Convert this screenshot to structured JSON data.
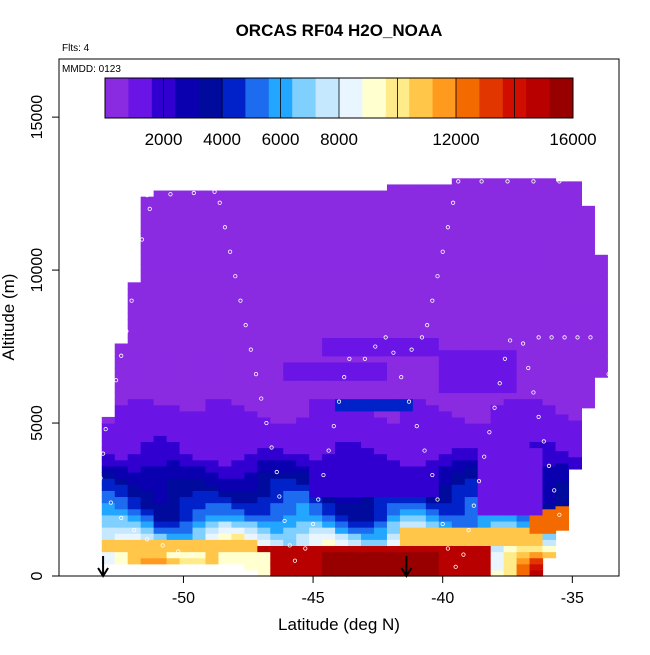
{
  "chart_data": {
    "type": "heatmap",
    "title": "ORCAS RF04 H2O_NOAA",
    "flights_label": "Flts: 4",
    "date_label": "MMDD: 0123",
    "xlabel": "Latitude (deg N)",
    "ylabel": "Altitude (m)",
    "xlim": [
      -54.8,
      -33.2
    ],
    "ylim": [
      0,
      16900
    ],
    "x_ticks": [
      -50,
      -45,
      -40,
      -35
    ],
    "x_tick_labels": [
      "-50",
      "-45",
      "-40",
      "-35"
    ],
    "y_ticks": [
      0,
      5000,
      10000,
      15000
    ],
    "y_tick_labels": [
      "0",
      "5000",
      "10000",
      "15000"
    ],
    "colorbar": {
      "min": 0,
      "max": 16000,
      "ticks": [
        2000,
        4000,
        6000,
        8000,
        12000,
        16000
      ],
      "tick_labels": [
        "2000",
        "4000",
        "6000",
        "8000",
        "12000",
        "16000"
      ],
      "palette": [
        "#8a2be2",
        "#6a14e6",
        "#3100d0",
        "#0a00b0",
        "#000a9c",
        "#0022c8",
        "#1d6cf0",
        "#22a6ff",
        "#7fcfff",
        "#c5e8ff",
        "#eaf6ff",
        "#ffffd0",
        "#ffeb8a",
        "#ffc64a",
        "#ff9a1e",
        "#f26a00",
        "#e23600",
        "#cf0e00",
        "#b80000",
        "#980000"
      ]
    },
    "colorbar_position": "top",
    "grid": false,
    "column_latitude_step": 0.5,
    "row_altitude_step": 200,
    "columns": [
      {
        "x": -52.9,
        "alt_bottom": 400,
        "alt_top": 5100
      },
      {
        "x": -52.4,
        "alt_bottom": 400,
        "alt_top": 7500
      },
      {
        "x": -51.9,
        "alt_bottom": 400,
        "alt_top": 9600
      },
      {
        "x": -51.4,
        "alt_bottom": 400,
        "alt_top": 12400
      },
      {
        "x": -50.9,
        "alt_bottom": 400,
        "alt_top": 12500
      },
      {
        "x": -50.4,
        "alt_bottom": 400,
        "alt_top": 12500
      },
      {
        "x": -49.9,
        "alt_bottom": 400,
        "alt_top": 12500
      },
      {
        "x": -49.4,
        "alt_bottom": 400,
        "alt_top": 12500
      },
      {
        "x": -48.9,
        "alt_bottom": 400,
        "alt_top": 12600
      },
      {
        "x": -48.4,
        "alt_bottom": 400,
        "alt_top": 12600
      },
      {
        "x": -47.9,
        "alt_bottom": 400,
        "alt_top": 12600
      },
      {
        "x": -47.4,
        "alt_bottom": 200,
        "alt_top": 12600
      },
      {
        "x": -46.9,
        "alt_bottom": 0,
        "alt_top": 12600
      },
      {
        "x": -46.4,
        "alt_bottom": 0,
        "alt_top": 12600
      },
      {
        "x": -45.9,
        "alt_bottom": 0,
        "alt_top": 12600
      },
      {
        "x": -45.4,
        "alt_bottom": 0,
        "alt_top": 12600
      },
      {
        "x": -44.9,
        "alt_bottom": 0,
        "alt_top": 12600
      },
      {
        "x": -44.4,
        "alt_bottom": 0,
        "alt_top": 12600
      },
      {
        "x": -43.9,
        "alt_bottom": 0,
        "alt_top": 12600
      },
      {
        "x": -43.4,
        "alt_bottom": 0,
        "alt_top": 12600
      },
      {
        "x": -42.9,
        "alt_bottom": 0,
        "alt_top": 12600
      },
      {
        "x": -42.4,
        "alt_bottom": 0,
        "alt_top": 12600
      },
      {
        "x": -41.9,
        "alt_bottom": 0,
        "alt_top": 12700
      },
      {
        "x": -41.4,
        "alt_bottom": 0,
        "alt_top": 12700
      },
      {
        "x": -40.9,
        "alt_bottom": 0,
        "alt_top": 12700
      },
      {
        "x": -40.4,
        "alt_bottom": 0,
        "alt_top": 12700
      },
      {
        "x": -39.9,
        "alt_bottom": 0,
        "alt_top": 12800
      },
      {
        "x": -39.4,
        "alt_bottom": 0,
        "alt_top": 12900
      },
      {
        "x": -38.9,
        "alt_bottom": 0,
        "alt_top": 12900
      },
      {
        "x": -38.4,
        "alt_bottom": 0,
        "alt_top": 12900
      },
      {
        "x": -37.9,
        "alt_bottom": 0,
        "alt_top": 12900
      },
      {
        "x": -37.4,
        "alt_bottom": 0,
        "alt_top": 12900
      },
      {
        "x": -36.9,
        "alt_bottom": 0,
        "alt_top": 12900
      },
      {
        "x": -36.4,
        "alt_bottom": 0,
        "alt_top": 12900
      },
      {
        "x": -35.9,
        "alt_bottom": 600,
        "alt_top": 12900
      },
      {
        "x": -35.4,
        "alt_bottom": 1500,
        "alt_top": 12900
      },
      {
        "x": -34.9,
        "alt_bottom": 3500,
        "alt_top": 12900
      },
      {
        "x": -34.4,
        "alt_bottom": 5500,
        "alt_top": 12000
      },
      {
        "x": -33.9,
        "alt_bottom": 6500,
        "alt_top": 10500
      }
    ],
    "profile_levels": [
      {
        "alt": 0,
        "value": 13000
      },
      {
        "alt": 400,
        "value": 11500
      },
      {
        "alt": 800,
        "value": 10000
      },
      {
        "alt": 1200,
        "value": 8000
      },
      {
        "alt": 1600,
        "value": 6500
      },
      {
        "alt": 2000,
        "value": 5000
      },
      {
        "alt": 2500,
        "value": 4200
      },
      {
        "alt": 3000,
        "value": 3500
      },
      {
        "alt": 3500,
        "value": 2500
      },
      {
        "alt": 4000,
        "value": 1500
      },
      {
        "alt": 5000,
        "value": 1000
      },
      {
        "alt": 6000,
        "value": 600
      },
      {
        "alt": 7000,
        "value": 300
      },
      {
        "alt": 8000,
        "value": 100
      },
      {
        "alt": 13000,
        "value": 50
      }
    ],
    "features": [
      {
        "lat_min": -46.9,
        "lat_max": -38.4,
        "alt_min": 0,
        "alt_max": 1000,
        "value": 14500
      },
      {
        "lat_min": -44.4,
        "lat_max": -40.4,
        "alt_min": 0,
        "alt_max": 700,
        "value": 15500
      },
      {
        "lat_min": -48.5,
        "lat_max": -46.5,
        "alt_min": 0,
        "alt_max": 700,
        "value": 9500
      },
      {
        "lat_min": -53.0,
        "lat_max": -47.0,
        "alt_min": 800,
        "alt_max": 1200,
        "value": 10500
      },
      {
        "lat_min": -41.5,
        "lat_max": -36.4,
        "alt_min": 1000,
        "alt_max": 1600,
        "value": 11000
      },
      {
        "lat_min": -36.4,
        "lat_max": -35.4,
        "alt_min": 1400,
        "alt_max": 2200,
        "value": 12500
      },
      {
        "lat_min": -45.0,
        "lat_max": -40.0,
        "alt_min": 2600,
        "alt_max": 3600,
        "value": 2000
      },
      {
        "lat_min": -38.4,
        "lat_max": -36.4,
        "alt_min": 2000,
        "alt_max": 4200,
        "value": 1400
      },
      {
        "lat_min": -44.0,
        "lat_max": -41.0,
        "alt_min": 5500,
        "alt_max": 5800,
        "value": 4500
      },
      {
        "lat_min": -44.5,
        "lat_max": -40.0,
        "alt_min": 7300,
        "alt_max": 7700,
        "value": 1200
      },
      {
        "lat_min": -46.0,
        "lat_max": -42.0,
        "alt_min": 6500,
        "alt_max": 7000,
        "value": 1300
      },
      {
        "lat_min": -40.0,
        "lat_max": -37.0,
        "alt_min": 6000,
        "alt_max": 7400,
        "value": 1000
      }
    ],
    "flight_track": [
      [
        -51.4,
        12450
      ],
      [
        -50.5,
        12480
      ],
      [
        -49.6,
        12520
      ],
      [
        -48.8,
        12560
      ],
      [
        -48.6,
        12200
      ],
      [
        -48.4,
        11400
      ],
      [
        -48.2,
        10600
      ],
      [
        -48.0,
        9800
      ],
      [
        -47.8,
        9000
      ],
      [
        -47.6,
        8200
      ],
      [
        -47.4,
        7400
      ],
      [
        -47.2,
        6600
      ],
      [
        -47.0,
        5800
      ],
      [
        -46.8,
        5000
      ],
      [
        -46.6,
        4200
      ],
      [
        -46.4,
        3400
      ],
      [
        -46.3,
        2600
      ],
      [
        -46.1,
        1800
      ],
      [
        -45.9,
        1000
      ],
      [
        -45.7,
        500
      ],
      [
        -45.3,
        900
      ],
      [
        -45.0,
        1700
      ],
      [
        -44.8,
        2500
      ],
      [
        -44.6,
        3300
      ],
      [
        -44.4,
        4100
      ],
      [
        -44.2,
        4900
      ],
      [
        -44.0,
        5700
      ],
      [
        -43.8,
        6500
      ],
      [
        -43.6,
        7100
      ],
      [
        -43.0,
        7100
      ],
      [
        -42.6,
        7500
      ],
      [
        -42.2,
        7800
      ],
      [
        -41.9,
        7300
      ],
      [
        -41.6,
        6500
      ],
      [
        -41.3,
        5700
      ],
      [
        -41.0,
        4900
      ],
      [
        -40.7,
        4100
      ],
      [
        -40.4,
        3300
      ],
      [
        -40.2,
        2500
      ],
      [
        -40.0,
        1700
      ],
      [
        -39.8,
        900
      ],
      [
        -39.5,
        300
      ],
      [
        -39.2,
        700
      ],
      [
        -39.0,
        1500
      ],
      [
        -38.8,
        2300
      ],
      [
        -38.6,
        3100
      ],
      [
        -38.4,
        3900
      ],
      [
        -38.2,
        4700
      ],
      [
        -38.0,
        5500
      ],
      [
        -37.8,
        6300
      ],
      [
        -37.6,
        7100
      ],
      [
        -37.4,
        7700
      ],
      [
        -36.9,
        7600
      ],
      [
        -36.7,
        6800
      ],
      [
        -36.5,
        6000
      ],
      [
        -36.3,
        5200
      ],
      [
        -36.1,
        4400
      ],
      [
        -35.9,
        3600
      ],
      [
        -35.7,
        2800
      ],
      [
        -35.5,
        2000
      ],
      [
        -35.3,
        1200
      ],
      [
        -35.1,
        500
      ],
      [
        -34.7,
        1000
      ],
      [
        -34.5,
        1800
      ],
      [
        -34.3,
        2600
      ],
      [
        -34.1,
        3400
      ],
      [
        -33.9,
        4200
      ],
      [
        -33.8,
        5000
      ],
      [
        -33.7,
        5800
      ],
      [
        -33.6,
        6600
      ],
      [
        -33.5,
        7400
      ],
      [
        -33.4,
        8200
      ],
      [
        -33.3,
        9000
      ],
      [
        -33.2,
        9800
      ],
      [
        -33.2,
        10600
      ],
      [
        -33.3,
        11400
      ],
      [
        -33.4,
        12200
      ],
      [
        -33.6,
        12900
      ],
      [
        -34.5,
        12900
      ],
      [
        -35.5,
        12900
      ],
      [
        -36.5,
        12900
      ],
      [
        -37.5,
        12900
      ],
      [
        -38.5,
        12900
      ],
      [
        -39.4,
        12900
      ],
      [
        -39.6,
        12200
      ],
      [
        -39.8,
        11400
      ],
      [
        -40.0,
        10600
      ],
      [
        -40.2,
        9800
      ],
      [
        -40.4,
        9000
      ],
      [
        -40.6,
        8200
      ],
      [
        -40.8,
        7800
      ],
      [
        -41.2,
        7400
      ],
      [
        -51.3,
        12000
      ],
      [
        -51.6,
        11000
      ],
      [
        -51.8,
        10000
      ],
      [
        -52.0,
        9000
      ],
      [
        -52.2,
        8000
      ],
      [
        -52.4,
        7200
      ],
      [
        -52.6,
        6400
      ],
      [
        -52.8,
        5600
      ],
      [
        -53.0,
        4800
      ],
      [
        -53.1,
        4000
      ],
      [
        -53.2,
        3200
      ],
      [
        -52.8,
        2400
      ],
      [
        -52.4,
        1900
      ],
      [
        -51.9,
        1500
      ],
      [
        -51.4,
        1200
      ],
      [
        -50.8,
        1000
      ],
      [
        -50.2,
        800
      ],
      [
        -49.7,
        700
      ],
      [
        -36.3,
        7800
      ],
      [
        -35.8,
        7800
      ],
      [
        -35.3,
        7800
      ],
      [
        -34.8,
        7800
      ],
      [
        -34.3,
        7800
      ]
    ],
    "markers": [
      {
        "x": -53.1,
        "label": "↓"
      },
      {
        "x": -41.4,
        "label": "↓"
      }
    ]
  }
}
